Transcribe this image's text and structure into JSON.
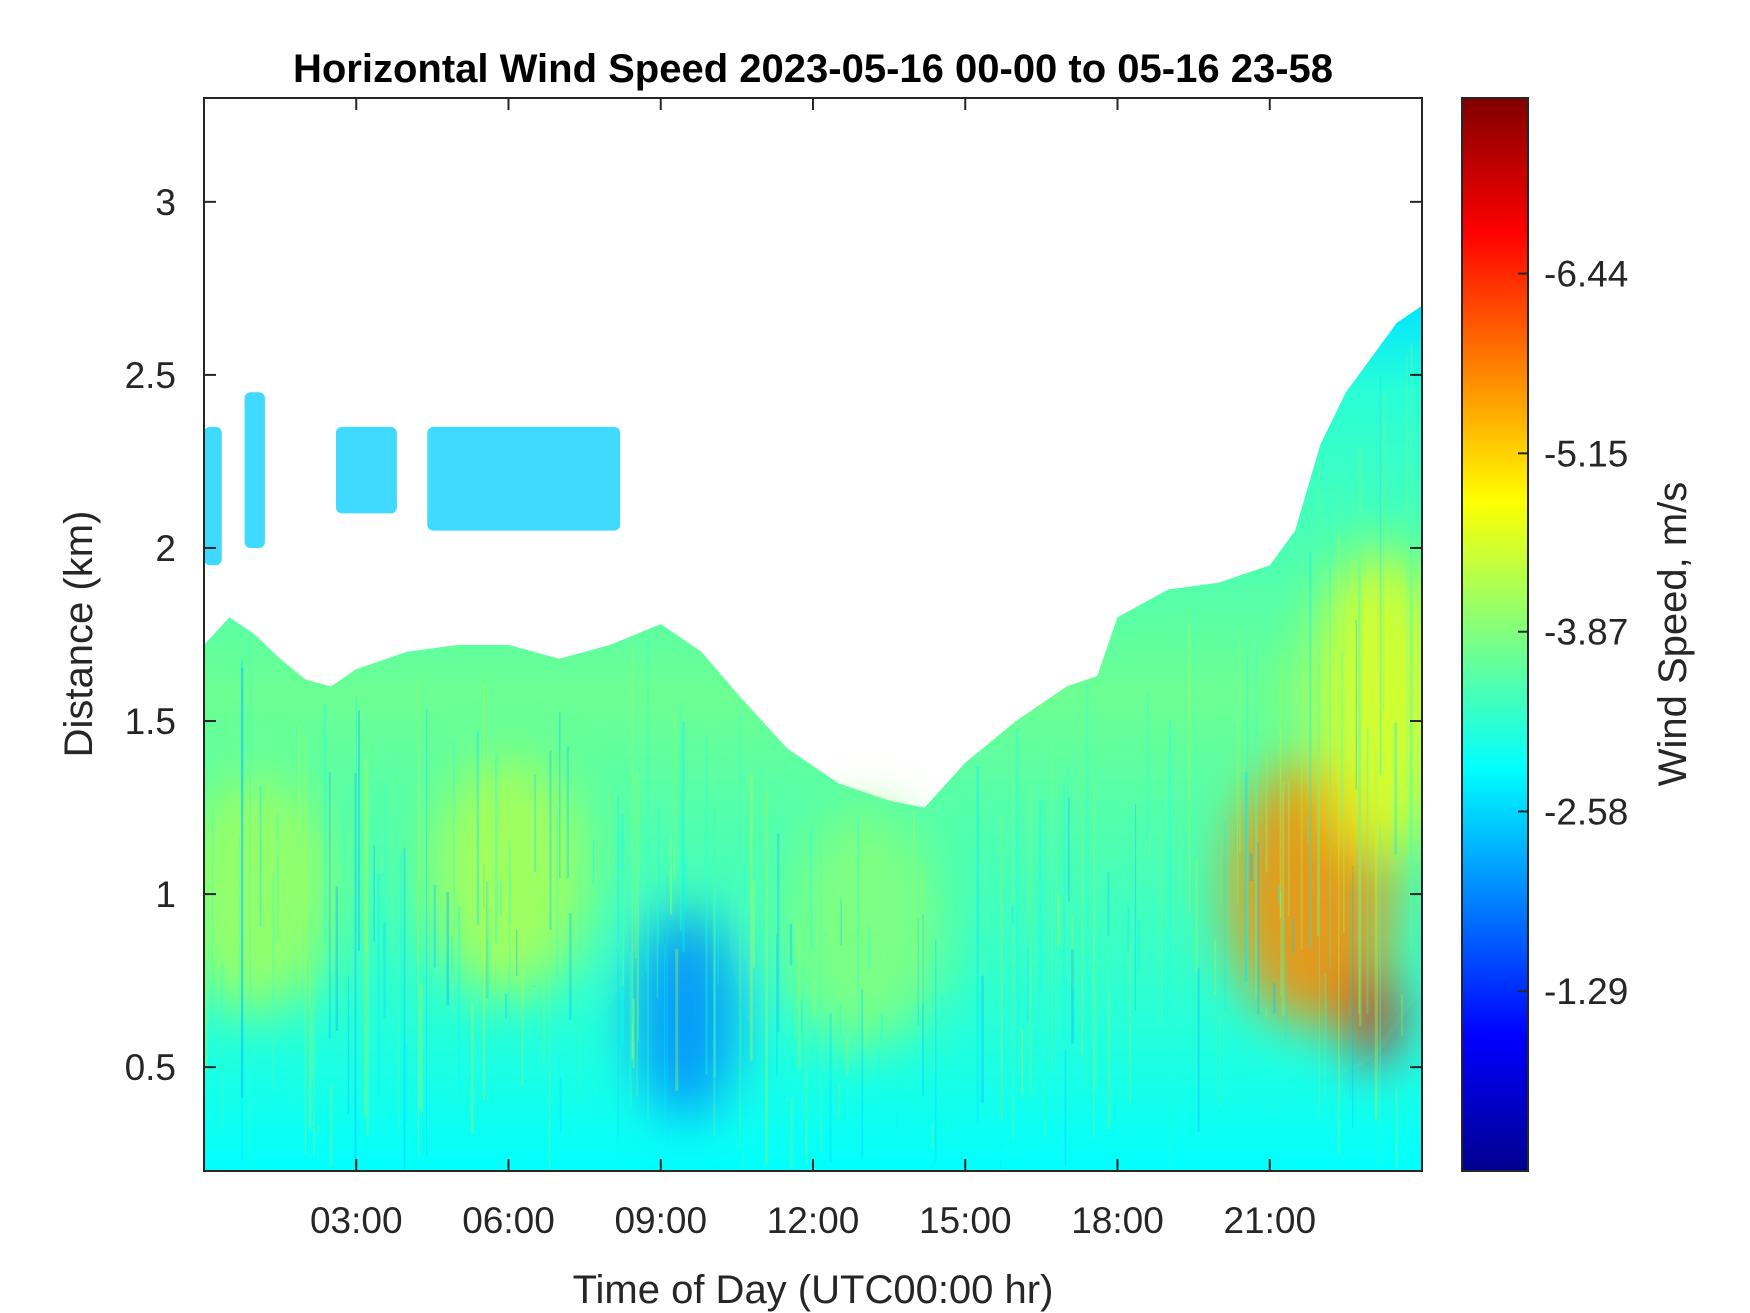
{
  "chart_data": {
    "type": "heatmap",
    "title": "Horizontal Wind Speed 2023-05-16 00-00 to 05-16 23-58",
    "xlabel": "Time of Day (UTC00:00 hr)",
    "ylabel": "Distance (km)",
    "x_unit": "hours",
    "xlim": [
      0,
      24
    ],
    "ylim": [
      0.2,
      3.3
    ],
    "x_ticks": [
      3,
      6,
      9,
      12,
      15,
      18,
      21
    ],
    "x_tick_labels": [
      "03:00",
      "06:00",
      "09:00",
      "12:00",
      "15:00",
      "18:00",
      "21:00"
    ],
    "y_ticks": [
      0.5,
      1,
      1.5,
      2,
      2.5,
      3
    ],
    "y_tick_labels": [
      "0.5",
      "1",
      "1.5",
      "2",
      "2.5",
      "3"
    ],
    "colorbar": {
      "label": "Wind Speed, m/s",
      "range": [
        0,
        -7.7
      ],
      "ticks": [
        -1.29,
        -2.58,
        -3.87,
        -5.15,
        -6.44
      ],
      "tick_labels": [
        "-1.29",
        "-2.58",
        "-3.87",
        "-5.15",
        "-6.44"
      ],
      "colormap": "jet"
    },
    "grid": false,
    "top_of_data_km": [
      {
        "t": 0.0,
        "km": 1.72
      },
      {
        "t": 0.5,
        "km": 1.8
      },
      {
        "t": 1.0,
        "km": 1.75
      },
      {
        "t": 1.5,
        "km": 1.68
      },
      {
        "t": 2.0,
        "km": 1.62
      },
      {
        "t": 2.5,
        "km": 1.6
      },
      {
        "t": 3.0,
        "km": 1.65
      },
      {
        "t": 4.0,
        "km": 1.7
      },
      {
        "t": 5.0,
        "km": 1.72
      },
      {
        "t": 6.0,
        "km": 1.72
      },
      {
        "t": 7.0,
        "km": 1.68
      },
      {
        "t": 8.0,
        "km": 1.72
      },
      {
        "t": 9.0,
        "km": 1.78
      },
      {
        "t": 9.8,
        "km": 1.7
      },
      {
        "t": 10.5,
        "km": 1.58
      },
      {
        "t": 11.5,
        "km": 1.42
      },
      {
        "t": 12.5,
        "km": 1.32
      },
      {
        "t": 13.5,
        "km": 1.27
      },
      {
        "t": 14.2,
        "km": 1.25
      },
      {
        "t": 15.0,
        "km": 1.38
      },
      {
        "t": 16.0,
        "km": 1.5
      },
      {
        "t": 17.0,
        "km": 1.6
      },
      {
        "t": 17.6,
        "km": 1.63
      },
      {
        "t": 18.0,
        "km": 1.8
      },
      {
        "t": 19.0,
        "km": 1.88
      },
      {
        "t": 20.0,
        "km": 1.9
      },
      {
        "t": 21.0,
        "km": 1.95
      },
      {
        "t": 21.5,
        "km": 2.05
      },
      {
        "t": 22.0,
        "km": 2.3
      },
      {
        "t": 22.5,
        "km": 2.45
      },
      {
        "t": 23.0,
        "km": 2.55
      },
      {
        "t": 23.5,
        "km": 2.65
      },
      {
        "t": 24.0,
        "km": 2.7
      }
    ],
    "speed_patches": [
      {
        "t": 1.0,
        "km": 1.0,
        "st": 1.6,
        "skm": 0.35,
        "speed": -4.1
      },
      {
        "t": 6.0,
        "km": 1.05,
        "st": 1.6,
        "skm": 0.35,
        "speed": -4.2
      },
      {
        "t": 9.5,
        "km": 0.65,
        "st": 1.0,
        "skm": 0.3,
        "speed": -2.0
      },
      {
        "t": 13.0,
        "km": 0.9,
        "st": 1.6,
        "skm": 0.35,
        "speed": -3.9
      },
      {
        "t": 21.8,
        "km": 1.0,
        "st": 1.6,
        "skm": 0.38,
        "speed": -5.7
      },
      {
        "t": 23.0,
        "km": 0.65,
        "st": 0.5,
        "skm": 0.14,
        "speed": -7.0
      },
      {
        "t": 23.2,
        "km": 1.55,
        "st": 1.3,
        "skm": 0.45,
        "speed": -4.6
      }
    ],
    "elevated_patches": [
      {
        "t0": 2.6,
        "t1": 3.8,
        "km0": 2.1,
        "km1": 2.35
      },
      {
        "t0": 4.4,
        "t1": 8.2,
        "km0": 2.05,
        "km1": 2.35
      },
      {
        "t0": 0.0,
        "t1": 0.35,
        "km0": 1.95,
        "km1": 2.35
      },
      {
        "t0": 0.8,
        "t1": 1.2,
        "km0": 2.0,
        "km1": 2.45
      }
    ]
  }
}
